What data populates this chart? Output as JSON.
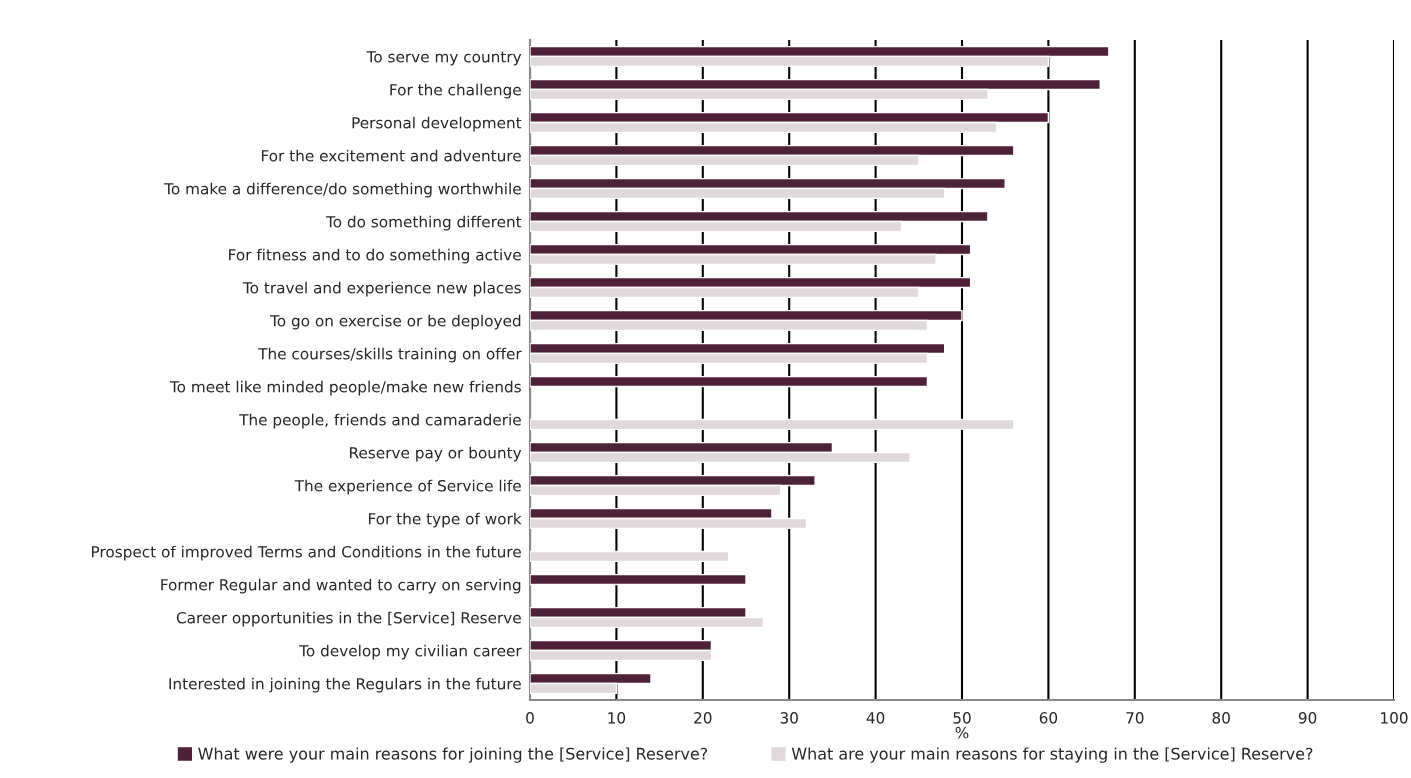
{
  "chart_data": {
    "type": "bar",
    "orientation": "horizontal",
    "xlabel": "%",
    "categories": [
      "To serve my country",
      "For the challenge",
      "Personal development",
      "For the excitement and adventure",
      "To make a difference/do something worthwhile",
      "To do something different",
      "For fitness and to do something active",
      "To travel and experience new places",
      "To go on exercise or be deployed",
      "The courses/skills training on offer",
      "To meet like minded people/make new friends",
      "The people, friends and camaraderie",
      "Reserve pay or bounty",
      "The experience of Service life",
      "For the type of work",
      "Prospect of improved Terms and Conditions in the future",
      "Former Regular and wanted to carry on serving",
      "Career opportunities in the [Service] Reserve",
      "To develop my civilian career",
      "Interested in joining the Regulars in the future"
    ],
    "series": [
      {
        "name": "What were your main reasons for joining the [Service] Reserve?",
        "color": "#4f2139",
        "values": [
          67,
          66,
          60,
          56,
          55,
          53,
          51,
          51,
          50,
          48,
          46,
          null,
          35,
          33,
          28,
          null,
          25,
          25,
          21,
          14
        ]
      },
      {
        "name": "What are your main reasons for staying in the [Service] Reserve?",
        "color": "#e0d8da",
        "values": [
          60,
          53,
          54,
          45,
          48,
          43,
          47,
          45,
          46,
          46,
          null,
          56,
          44,
          29,
          32,
          23,
          null,
          27,
          21,
          10
        ]
      }
    ],
    "xlim": [
      0,
      100
    ],
    "xticks": [
      0,
      10,
      20,
      30,
      40,
      50,
      60,
      70,
      80,
      90,
      100
    ],
    "grid": "x",
    "legend": "bottom"
  }
}
